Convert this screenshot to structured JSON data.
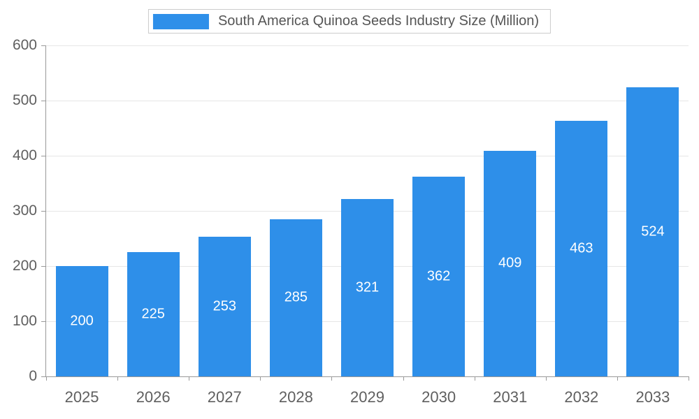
{
  "chart_data": {
    "type": "bar",
    "title": "South America Quinoa Seeds Industry Size (Million)",
    "categories": [
      "2025",
      "2026",
      "2027",
      "2028",
      "2029",
      "2030",
      "2031",
      "2032",
      "2033"
    ],
    "values": [
      200,
      225,
      253,
      285,
      321,
      362,
      409,
      463,
      524
    ],
    "xlabel": "",
    "ylabel": "",
    "ylim": [
      0,
      600
    ],
    "ytick_step": 100,
    "grid": true,
    "legend_position": "top-center",
    "bar_color": "#2e8fe9",
    "value_label_color": "#ffffff",
    "axis_color": "#999999",
    "grid_color": "#e6e6e6",
    "tick_label_color": "#5f5f5f"
  }
}
